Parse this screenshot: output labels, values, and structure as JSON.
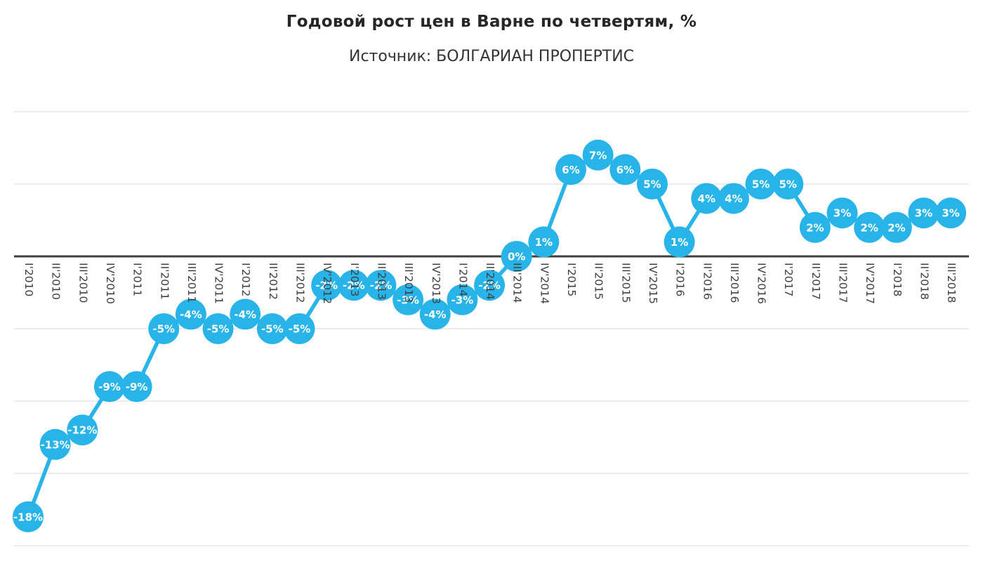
{
  "chart_data": {
    "type": "line",
    "title": "Годовой рост цен в Варне по четвертям, %",
    "subtitle": "Источник: БОЛГАРИАН ПРОПЕРТИС",
    "xlabel": "",
    "ylabel": "",
    "categories": [
      "I'2010",
      "II'2010",
      "III'2010",
      "IV'2010",
      "I'2011",
      "II'2011",
      "III'2011",
      "IV'2011",
      "I'2012",
      "II'2012",
      "III'2012",
      "IV'2012",
      "I'2013",
      "II'2013",
      "III'2013",
      "IV'2013",
      "I'2014",
      "II'2014",
      "III'2014",
      "IV'2014",
      "I'2015",
      "II'2015",
      "III'2015",
      "IV'2015",
      "I'2016",
      "II'2016",
      "III'2016",
      "IV'2016",
      "I'2017",
      "II'2017",
      "III'2017",
      "IV'2017",
      "I'2018",
      "II'2018",
      "III'2018"
    ],
    "values": [
      -18,
      -13,
      -12,
      -9,
      -9,
      -5,
      -4,
      -5,
      -4,
      -5,
      -5,
      -2,
      -2,
      -2,
      -3,
      -4,
      -3,
      -2,
      0,
      1,
      6,
      7,
      6,
      5,
      1,
      4,
      4,
      5,
      5,
      2,
      3,
      2,
      2,
      3,
      3
    ],
    "label_suffix": "%",
    "ylim": [
      -20,
      10
    ],
    "gridline_values": [
      10,
      5,
      0,
      -5,
      -10,
      -15,
      -20
    ],
    "grid": true,
    "legend": false,
    "marker_labels_inside": true,
    "colors": {
      "series": "#28b4e8",
      "gridline": "#d9d9d9",
      "zero_line": "#3f3f3f",
      "data_label": "#ffffff",
      "axis_label": "#3f3f3f",
      "title": "#262626"
    }
  }
}
